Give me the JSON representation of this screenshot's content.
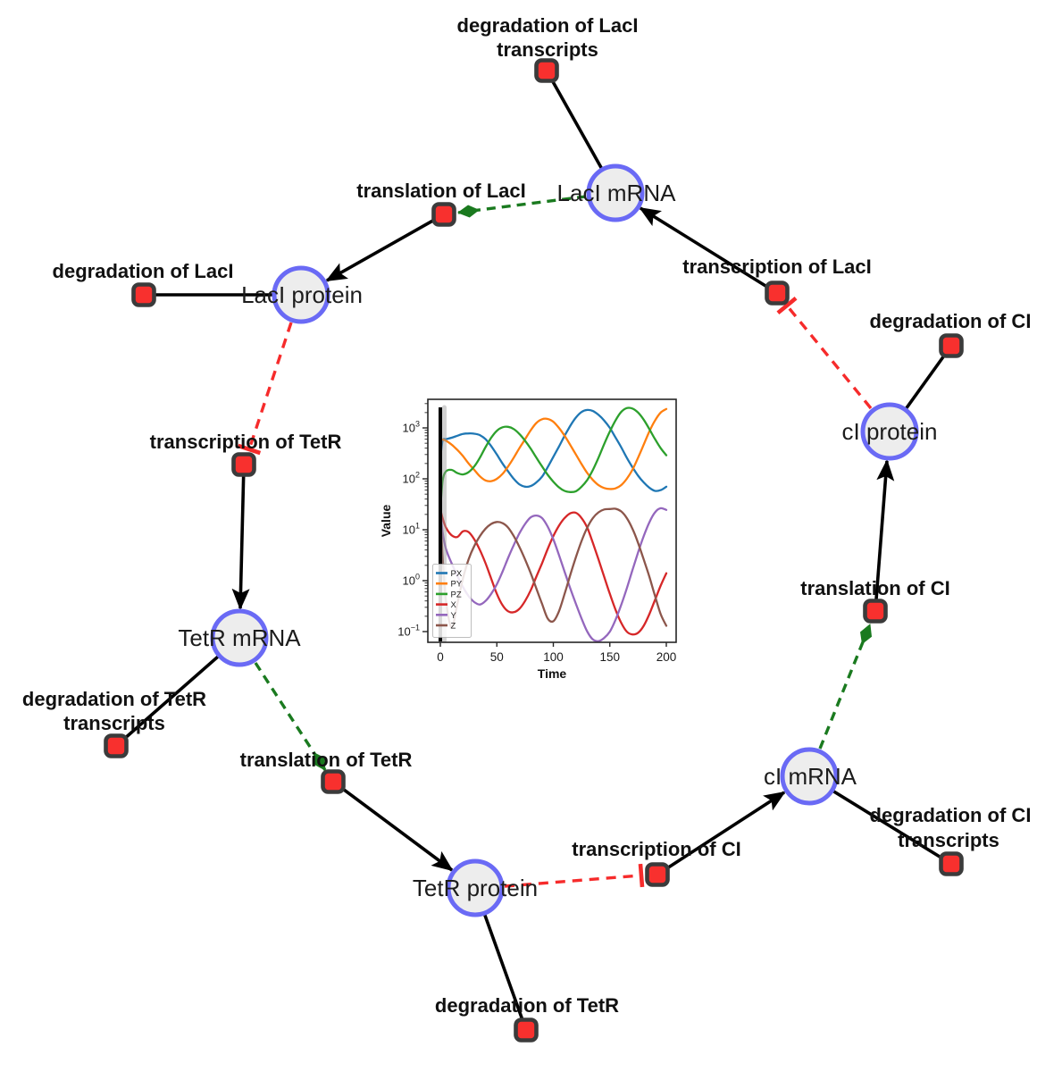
{
  "figure": {
    "kind": "gene-regulatory-network-with-inset-plot",
    "background": "#ffffff"
  },
  "colors": {
    "species_fill": "#ededed",
    "species_border": "#6a6af5",
    "reaction_fill": "#f8302e",
    "reaction_border": "#3b3b3b",
    "production_edge": "#000000",
    "modifier_edge": "#1a7a1f",
    "inhibition_edge": "#f62b2b"
  },
  "network": {
    "species": [
      {
        "label": "LacI mRNA"
      },
      {
        "label": "LacI protein"
      },
      {
        "label": "cI protein"
      },
      {
        "label": "TetR mRNA"
      },
      {
        "label": "TetR protein"
      },
      {
        "label": "cI mRNA"
      }
    ],
    "reactions": [
      {
        "label1": "degradation of LacI",
        "label2": "transcripts"
      },
      {
        "label1": "translation of LacI"
      },
      {
        "label1": "degradation of LacI"
      },
      {
        "label1": "transcription of LacI"
      },
      {
        "label1": "degradation of CI"
      },
      {
        "label1": "transcription of TetR"
      },
      {
        "label1": "degradation of TetR",
        "label2": "transcripts"
      },
      {
        "label1": "translation of TetR"
      },
      {
        "label1": "translation of CI"
      },
      {
        "label1": "degradation of CI",
        "label2": "transcripts"
      },
      {
        "label1": "transcription of CI"
      },
      {
        "label1": "degradation of TetR"
      }
    ],
    "edges": [
      {
        "from": "LacI mRNA",
        "to": "degradation of LacI transcripts",
        "type": "consumption"
      },
      {
        "from": "transcription of LacI",
        "to": "LacI mRNA",
        "type": "production"
      },
      {
        "from": "LacI mRNA",
        "to": "translation of LacI",
        "type": "modifier"
      },
      {
        "from": "translation of LacI",
        "to": "LacI protein",
        "type": "production"
      },
      {
        "from": "LacI protein",
        "to": "degradation of LacI",
        "type": "consumption"
      },
      {
        "from": "LacI protein",
        "to": "transcription of TetR",
        "type": "inhibition"
      },
      {
        "from": "transcription of TetR",
        "to": "TetR mRNA",
        "type": "production"
      },
      {
        "from": "TetR mRNA",
        "to": "degradation of TetR transcripts",
        "type": "consumption"
      },
      {
        "from": "TetR mRNA",
        "to": "translation of TetR",
        "type": "modifier"
      },
      {
        "from": "translation of TetR",
        "to": "TetR protein",
        "type": "production"
      },
      {
        "from": "TetR protein",
        "to": "degradation of TetR",
        "type": "consumption"
      },
      {
        "from": "TetR protein",
        "to": "transcription of CI",
        "type": "inhibition"
      },
      {
        "from": "transcription of CI",
        "to": "cI mRNA",
        "type": "production"
      },
      {
        "from": "cI mRNA",
        "to": "degradation of CI transcripts",
        "type": "consumption"
      },
      {
        "from": "cI mRNA",
        "to": "translation of CI",
        "type": "modifier"
      },
      {
        "from": "translation of CI",
        "to": "cI protein",
        "type": "production"
      },
      {
        "from": "cI protein",
        "to": "degradation of CI",
        "type": "consumption"
      },
      {
        "from": "cI protein",
        "to": "transcription of LacI",
        "type": "inhibition"
      }
    ]
  },
  "chart_data": {
    "type": "line",
    "title": "",
    "xlabel": "Time",
    "ylabel": "Value",
    "ylog": true,
    "grid": false,
    "legend_position": "lower left",
    "x_ticks": [
      0,
      50,
      100,
      150,
      200
    ],
    "y_ticks_exponents": [
      -1,
      0,
      1,
      2,
      3
    ],
    "xlim": [
      -10,
      210
    ],
    "initial_transient_line_x": 0,
    "x": [
      0,
      2,
      5,
      10,
      15,
      20,
      25,
      30,
      35,
      40,
      45,
      50,
      55,
      60,
      65,
      70,
      75,
      80,
      85,
      90,
      95,
      100,
      105,
      110,
      115,
      120,
      125,
      130,
      135,
      140,
      145,
      150,
      155,
      160,
      165,
      170,
      175,
      180,
      185,
      190,
      195,
      200
    ],
    "series": [
      {
        "name": "PX",
        "color": "#1f77b4",
        "values": [
          250,
          560,
          600,
          640,
          700,
          760,
          780,
          770,
          720,
          600,
          440,
          300,
          200,
          140,
          100,
          78,
          70,
          72,
          85,
          110,
          170,
          270,
          430,
          700,
          1100,
          1600,
          2050,
          2250,
          2150,
          1800,
          1400,
          1000,
          650,
          420,
          260,
          170,
          115,
          85,
          67,
          58,
          60,
          70
        ]
      },
      {
        "name": "PY",
        "color": "#ff7f0e",
        "values": [
          600,
          590,
          560,
          470,
          370,
          280,
          200,
          150,
          112,
          93,
          90,
          100,
          125,
          175,
          260,
          400,
          600,
          900,
          1250,
          1480,
          1500,
          1320,
          1000,
          700,
          460,
          300,
          195,
          130,
          95,
          75,
          66,
          63,
          65,
          75,
          100,
          150,
          260,
          470,
          850,
          1400,
          2000,
          2350
        ]
      },
      {
        "name": "PZ",
        "color": "#2ca02c",
        "values": [
          25,
          90,
          140,
          150,
          130,
          122,
          135,
          175,
          260,
          420,
          640,
          880,
          1030,
          1050,
          950,
          760,
          560,
          390,
          260,
          175,
          120,
          88,
          68,
          58,
          55,
          57,
          70,
          95,
          150,
          260,
          480,
          850,
          1400,
          2050,
          2450,
          2400,
          2000,
          1450,
          950,
          600,
          400,
          290
        ]
      },
      {
        "name": "X",
        "color": "#d62728",
        "values": [
          25,
          17,
          11,
          7.8,
          7.2,
          9.3,
          9.0,
          6.5,
          4.0,
          2.2,
          1.1,
          0.55,
          0.33,
          0.25,
          0.24,
          0.28,
          0.4,
          0.65,
          1.2,
          2.2,
          4.2,
          7.5,
          12,
          17,
          21,
          21.5,
          17,
          11,
          5.5,
          2.6,
          1.2,
          0.55,
          0.27,
          0.15,
          0.1,
          0.088,
          0.095,
          0.13,
          0.22,
          0.42,
          0.8,
          1.4
        ]
      },
      {
        "name": "Y",
        "color": "#9467bd",
        "values": [
          25,
          9,
          4.2,
          2.2,
          1.25,
          0.75,
          0.5,
          0.38,
          0.34,
          0.4,
          0.55,
          0.85,
          1.5,
          2.8,
          5,
          8.5,
          13,
          17.5,
          19,
          17,
          11.5,
          6.5,
          3.2,
          1.5,
          0.7,
          0.35,
          0.18,
          0.1,
          0.07,
          0.065,
          0.075,
          0.1,
          0.17,
          0.33,
          0.7,
          1.6,
          3.6,
          7.5,
          14,
          22,
          26.5,
          24.5
        ]
      },
      {
        "name": "Z",
        "color": "#8c564b",
        "values": [
          25,
          3,
          0.4,
          0.12,
          0.35,
          1.1,
          2.6,
          4.8,
          7.5,
          10.5,
          13,
          14.2,
          13.5,
          11,
          7.5,
          4.6,
          2.6,
          1.4,
          0.7,
          0.35,
          0.18,
          0.16,
          0.25,
          0.55,
          1.3,
          2.9,
          6,
          11,
          17,
          22,
          25,
          25.5,
          25.8,
          23,
          17,
          10.5,
          5.5,
          2.6,
          1.2,
          0.5,
          0.22,
          0.13
        ]
      }
    ]
  }
}
